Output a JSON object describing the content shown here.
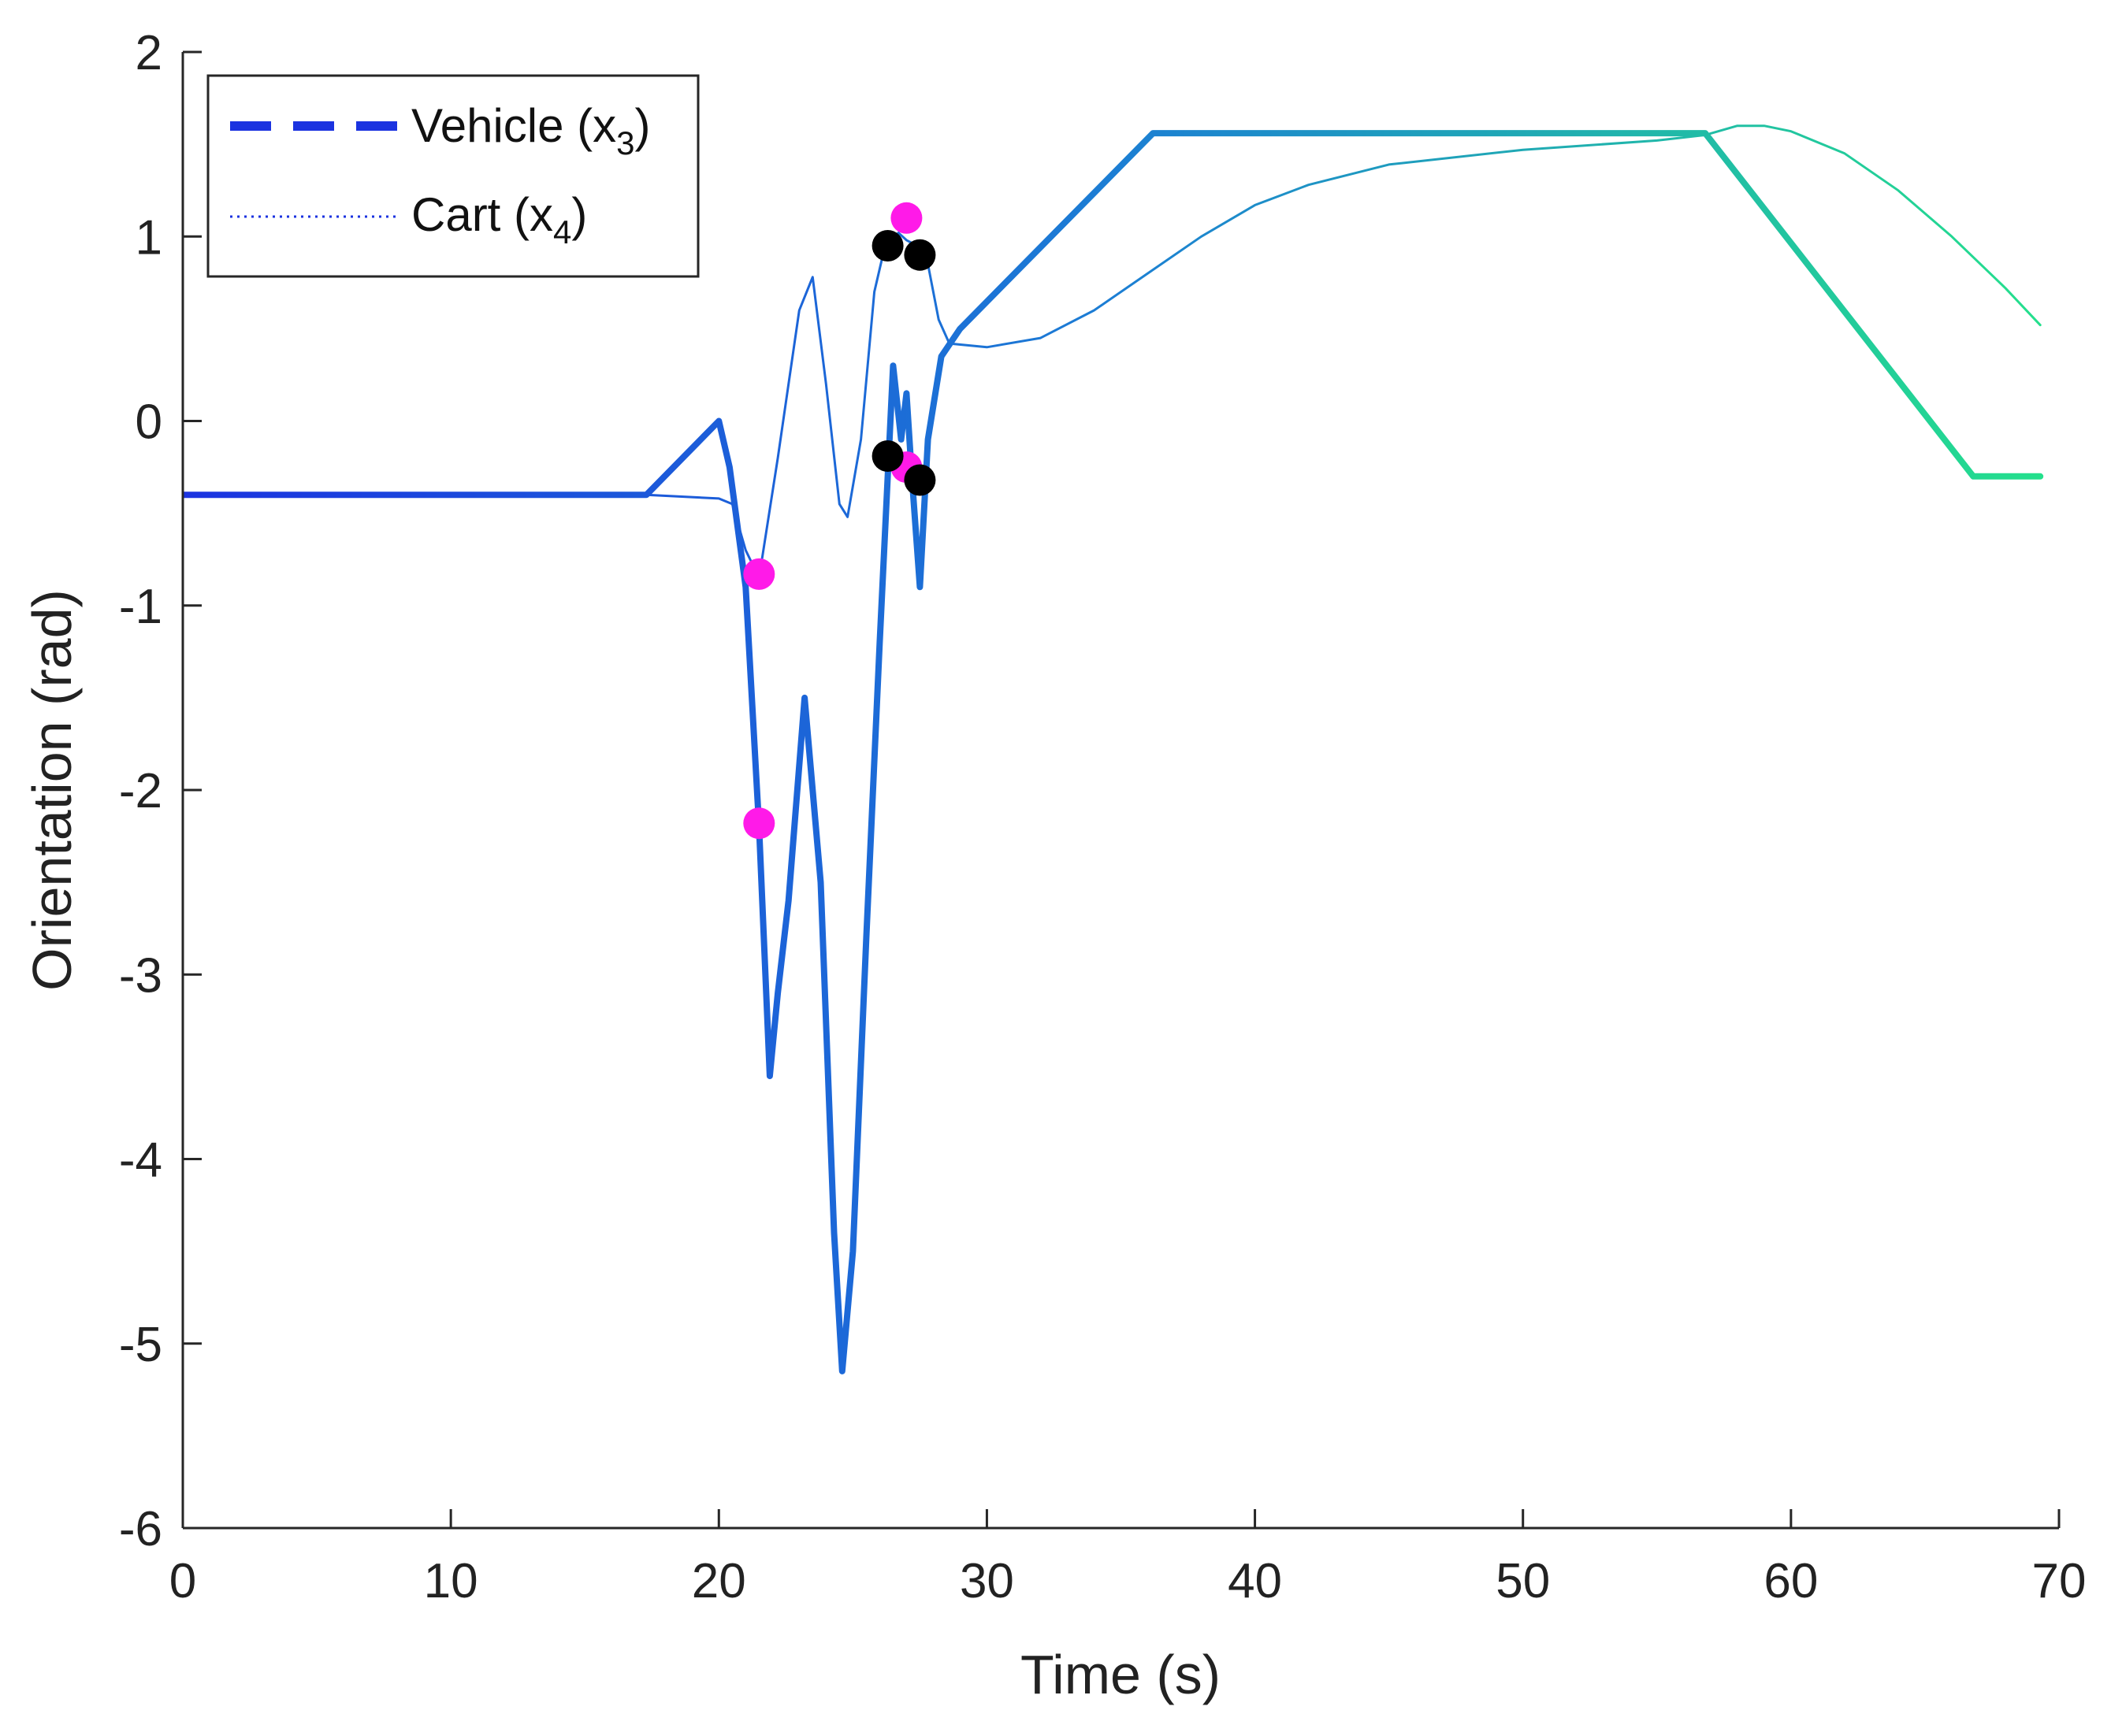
{
  "chart_data": {
    "type": "line",
    "title": "",
    "xlabel": "Time (s)",
    "ylabel": "Orientation (rad)",
    "xlim": [
      0,
      70
    ],
    "ylim": [
      -6,
      2
    ],
    "xticks": [
      0,
      10,
      20,
      30,
      40,
      50,
      60,
      70
    ],
    "yticks": [
      -6,
      -5,
      -4,
      -3,
      -2,
      -1,
      0,
      1,
      2
    ],
    "grid": false,
    "legend_position": "top-left",
    "legend": [
      {
        "base": "Vehicle (x",
        "sub": "3",
        "close": ")",
        "style": "dashed"
      },
      {
        "base": "Cart (x",
        "sub": "4",
        "close": ")",
        "style": "dotted"
      }
    ],
    "series": [
      {
        "name": "Vehicle (x3)",
        "style": "thick-gradient",
        "colors": [
          "#1b33e0",
          "#1c7ed4",
          "#24e08c"
        ],
        "x": [
          0,
          17.3,
          20.0,
          20.4,
          21.0,
          21.5,
          21.9,
          22.2,
          22.6,
          23.2,
          23.8,
          24.3,
          24.6,
          25.0,
          25.5,
          26.0,
          26.5,
          26.8,
          27.0,
          27.2,
          27.5,
          27.8,
          28.3,
          29.0,
          36.2,
          56.8,
          66.8,
          69.3
        ],
        "y": [
          -0.4,
          -0.4,
          0.0,
          -0.25,
          -0.9,
          -2.2,
          -3.55,
          -3.1,
          -2.6,
          -1.5,
          -2.5,
          -4.4,
          -5.15,
          -4.5,
          -2.8,
          -1.2,
          0.3,
          -0.1,
          0.15,
          -0.3,
          -0.9,
          -0.1,
          0.35,
          0.5,
          1.56,
          1.56,
          -0.3,
          -0.3
        ]
      },
      {
        "name": "Cart (x4)",
        "style": "thin-gradient",
        "colors": [
          "#1b33e0",
          "#1c7ed4",
          "#24e08c"
        ],
        "x": [
          0,
          17.3,
          20.0,
          20.5,
          21.0,
          21.5,
          22.2,
          23.0,
          23.5,
          24.0,
          24.5,
          24.8,
          25.3,
          25.8,
          26.2,
          26.7,
          27.0,
          27.4,
          27.8,
          28.2,
          28.6,
          30.0,
          32.0,
          34.0,
          36.0,
          38.0,
          40.0,
          42.0,
          45.0,
          50.0,
          55.0,
          56.8,
          58.0,
          59.0,
          60.0,
          62.0,
          64.0,
          66.0,
          68.0,
          69.3
        ],
        "y": [
          -0.4,
          -0.4,
          -0.42,
          -0.45,
          -0.7,
          -0.85,
          -0.2,
          0.6,
          0.78,
          0.2,
          -0.45,
          -0.52,
          -0.1,
          0.7,
          0.95,
          1.02,
          0.98,
          0.95,
          0.85,
          0.55,
          0.42,
          0.4,
          0.45,
          0.6,
          0.8,
          1.0,
          1.17,
          1.28,
          1.39,
          1.47,
          1.52,
          1.55,
          1.6,
          1.6,
          1.57,
          1.45,
          1.25,
          1.0,
          0.72,
          0.52
        ]
      }
    ],
    "markers": [
      {
        "x": 21.5,
        "y": -0.83,
        "color": "#ff1ae8"
      },
      {
        "x": 21.5,
        "y": -2.18,
        "color": "#ff1ae8"
      },
      {
        "x": 27.0,
        "y": 1.1,
        "color": "#ff1ae8"
      },
      {
        "x": 27.0,
        "y": -0.25,
        "color": "#ff1ae8"
      },
      {
        "x": 26.3,
        "y": 0.95,
        "color": "#000000"
      },
      {
        "x": 27.5,
        "y": 0.9,
        "color": "#000000"
      },
      {
        "x": 26.3,
        "y": -0.19,
        "color": "#000000"
      },
      {
        "x": 27.5,
        "y": -0.32,
        "color": "#000000"
      }
    ]
  }
}
